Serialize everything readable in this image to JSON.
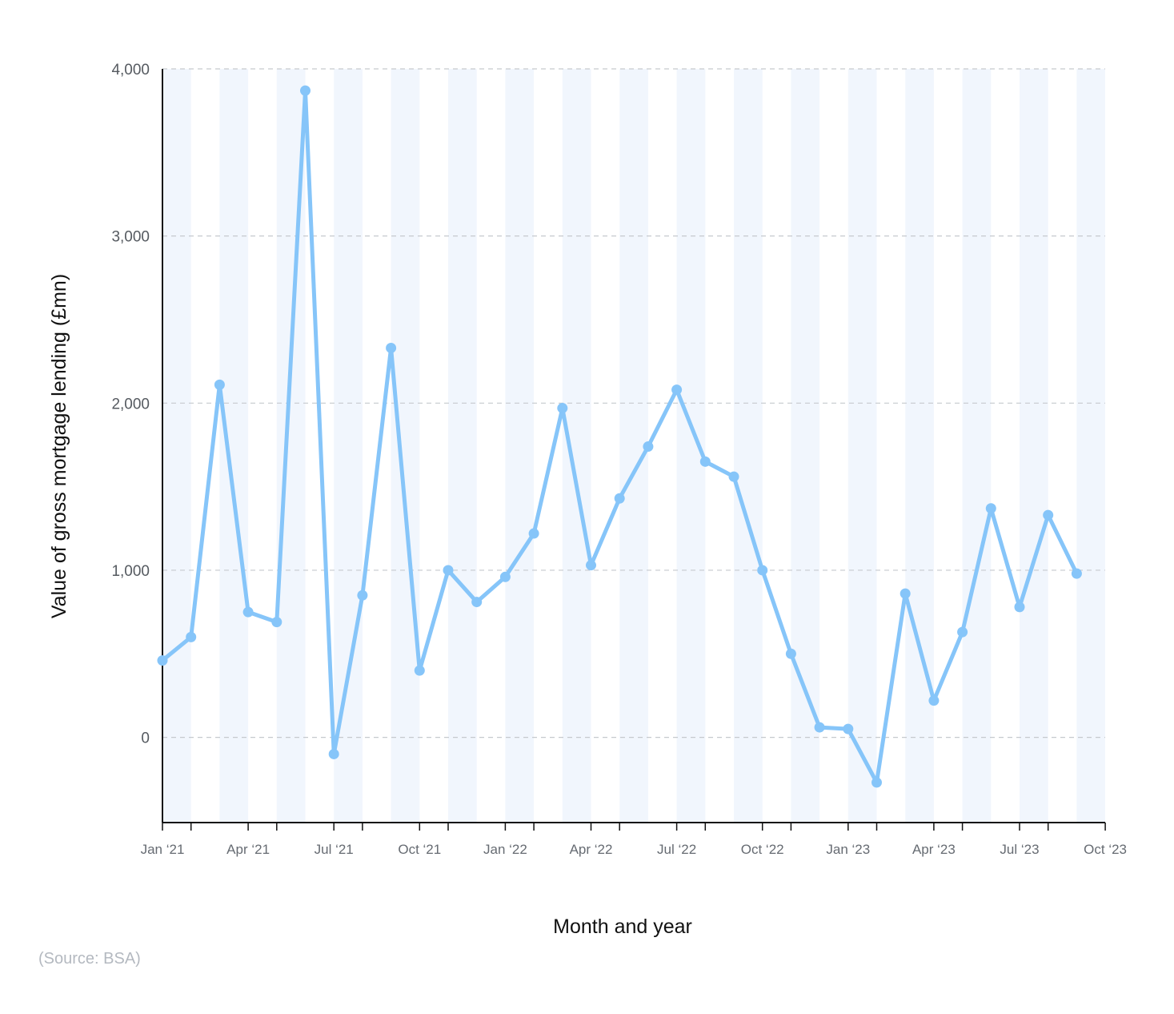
{
  "chart_data": {
    "type": "line",
    "xlabel": "Month and year",
    "ylabel": "Value of gross mortgage lending (£mn)",
    "ylim": [
      -510,
      4000
    ],
    "yticks": [
      0,
      1000,
      2000,
      3000,
      4000
    ],
    "ytick_labels": [
      "0",
      "1,000",
      "2,000",
      "3,000",
      "4,000"
    ],
    "grid": "horizontal dashed",
    "x_tick_labels": [
      "Jan ‘21",
      "Apr ‘21",
      "Jul ‘21",
      "Oct ‘21",
      "Jan ‘22",
      "Apr ‘22",
      "Jul ‘22",
      "Oct ‘22",
      "Jan ‘23",
      "Apr ‘23",
      "Jul ‘23",
      "Oct ‘23"
    ],
    "x": [
      "Jan 2021",
      "Feb 2021",
      "Mar 2021",
      "Apr 2021",
      "May 2021",
      "Jun 2021",
      "Jul 2021",
      "Aug 2021",
      "Sep 2021",
      "Oct 2021",
      "Nov 2021",
      "Dec 2021",
      "Jan 2022",
      "Feb 2022",
      "Mar 2022",
      "Apr 2022",
      "May 2022",
      "Jun 2022",
      "Jul 2022",
      "Aug 2022",
      "Sep 2022",
      "Oct 2022",
      "Nov 2022",
      "Dec 2022",
      "Jan 2023",
      "Feb 2023",
      "Mar 2023",
      "Apr 2023",
      "May 2023",
      "Jun 2023",
      "Jul 2023",
      "Aug 2023",
      "Sep 2023"
    ],
    "series": [
      {
        "values": [
          460,
          600,
          2110,
          750,
          690,
          3870,
          -100,
          850,
          2330,
          400,
          1000,
          810,
          960,
          1220,
          1970,
          1030,
          1430,
          1740,
          2080,
          1650,
          1560,
          1000,
          500,
          60,
          50,
          -270,
          860,
          220,
          630,
          1370,
          780,
          1330,
          980
        ],
        "color": "#86c5f9"
      }
    ],
    "band_color": "#f1f6fd",
    "grid_color": "#c6c9ce"
  },
  "source": "(Source: BSA)"
}
